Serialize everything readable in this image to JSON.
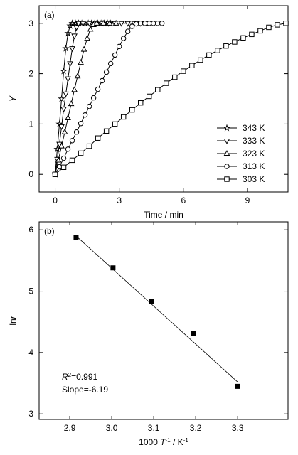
{
  "chart_data": [
    {
      "type": "line",
      "panel_label": "(a)",
      "xlabel": [
        {
          "text": "Time / min"
        }
      ],
      "ylabel": [
        {
          "text": "Y",
          "style": "italic"
        }
      ],
      "xlim": [
        -0.75,
        10.9
      ],
      "ylim": [
        -0.35,
        3.35
      ],
      "xticks": [
        0,
        3,
        6,
        9
      ],
      "yticks": [
        0,
        1,
        2,
        3
      ],
      "legend": "lower right",
      "series": [
        {
          "name": "343 K",
          "marker": "star",
          "color": "#000000",
          "x": [
            0,
            0.1,
            0.2,
            0.3,
            0.4,
            0.5,
            0.6,
            0.7,
            0.8,
            0.95,
            1.1,
            1.25,
            1.4,
            1.55,
            1.7,
            1.85,
            2.0,
            2.15,
            2.3,
            2.45,
            2.6
          ],
          "values": [
            0,
            0.5,
            1.0,
            1.5,
            2.05,
            2.5,
            2.8,
            2.95,
            3.0,
            3.0,
            3.0,
            3.0,
            3.0,
            3.0,
            3.0,
            3.0,
            3.0,
            3.0,
            3.0,
            3.0,
            3.0
          ]
        },
        {
          "name": "333 K",
          "marker": "triangle-down",
          "color": "#000000",
          "x": [
            0,
            0.1,
            0.2,
            0.3,
            0.4,
            0.5,
            0.6,
            0.7,
            0.8,
            0.9,
            1.0,
            1.1,
            1.3,
            1.6,
            1.9,
            2.2,
            2.5,
            2.8,
            3.1,
            3.4,
            3.7,
            4.0,
            4.3
          ],
          "values": [
            0,
            0.3,
            0.6,
            0.95,
            1.3,
            1.6,
            1.9,
            2.2,
            2.5,
            2.75,
            2.92,
            3.0,
            3.0,
            3.0,
            3.0,
            3.0,
            3.0,
            3.0,
            3.0,
            3.0,
            3.0,
            3.0,
            3.0
          ]
        },
        {
          "name": "323 K",
          "marker": "triangle-up",
          "color": "#000000",
          "x": [
            0,
            0.15,
            0.3,
            0.45,
            0.6,
            0.75,
            0.9,
            1.05,
            1.2,
            1.35,
            1.5,
            1.65,
            1.8,
            1.95,
            2.25,
            2.55,
            2.85
          ],
          "values": [
            0,
            0.28,
            0.56,
            0.84,
            1.12,
            1.4,
            1.68,
            1.95,
            2.22,
            2.48,
            2.7,
            2.88,
            2.97,
            3.0,
            3.0,
            3.0,
            3.0
          ]
        },
        {
          "name": "313 K",
          "marker": "circle",
          "color": "#000000",
          "x": [
            0,
            0.2,
            0.4,
            0.6,
            0.8,
            1.0,
            1.2,
            1.4,
            1.6,
            1.8,
            2.0,
            2.2,
            2.4,
            2.6,
            2.8,
            3.0,
            3.2,
            3.4,
            3.6,
            3.8,
            4.0,
            4.2,
            4.4,
            4.6,
            4.8,
            5.0
          ],
          "values": [
            0,
            0.15,
            0.32,
            0.5,
            0.67,
            0.84,
            1.01,
            1.18,
            1.35,
            1.52,
            1.69,
            1.86,
            2.03,
            2.2,
            2.37,
            2.54,
            2.7,
            2.84,
            2.94,
            2.99,
            3.0,
            3.0,
            3.0,
            3.0,
            3.0,
            3.0
          ]
        },
        {
          "name": "303 K",
          "marker": "square",
          "color": "#000000",
          "x": [
            0,
            0.4,
            0.8,
            1.2,
            1.6,
            2.0,
            2.4,
            2.8,
            3.2,
            3.6,
            4.0,
            4.4,
            4.8,
            5.2,
            5.6,
            6.0,
            6.4,
            6.8,
            7.2,
            7.6,
            8.0,
            8.4,
            8.8,
            9.2,
            9.6,
            10.0,
            10.4,
            10.8
          ],
          "values": [
            0,
            0.14,
            0.28,
            0.42,
            0.56,
            0.72,
            0.86,
            1.0,
            1.14,
            1.28,
            1.42,
            1.55,
            1.68,
            1.81,
            1.93,
            2.05,
            2.16,
            2.27,
            2.37,
            2.46,
            2.55,
            2.63,
            2.71,
            2.78,
            2.85,
            2.92,
            2.97,
            3.0
          ]
        }
      ]
    },
    {
      "type": "scatter",
      "panel_label": "(b)",
      "xlabel": [
        {
          "text": "1000 "
        },
        {
          "text": "T",
          "style": "italic"
        },
        {
          "text": "-1",
          "style": "sup"
        },
        {
          "text": " / K"
        },
        {
          "text": "-1",
          "style": "sup"
        }
      ],
      "ylabel": [
        {
          "text": "ln"
        },
        {
          "text": "r",
          "style": "italic"
        }
      ],
      "xlim": [
        2.827,
        3.42
      ],
      "ylim": [
        2.91,
        6.13
      ],
      "xticks": [
        2.9,
        {
          "value": 3,
          "label": "3.0"
        },
        3.1,
        3.2,
        3.3
      ],
      "yticks": [
        3,
        4,
        5,
        6
      ],
      "color": "#000000",
      "x": [
        2.915,
        3.003,
        3.095,
        3.195,
        3.3
      ],
      "values": [
        5.87,
        5.38,
        4.83,
        4.31,
        3.45
      ],
      "fit": {
        "x": [
          2.915,
          3.3
        ],
        "values": [
          5.9,
          3.52
        ]
      },
      "annotations": [
        [
          {
            "text": "R",
            "style": "italic"
          },
          {
            "text": "2",
            "style": "sup"
          },
          {
            "text": "=0.991"
          }
        ],
        [
          {
            "text": "Slope=-6.19"
          }
        ]
      ]
    }
  ]
}
